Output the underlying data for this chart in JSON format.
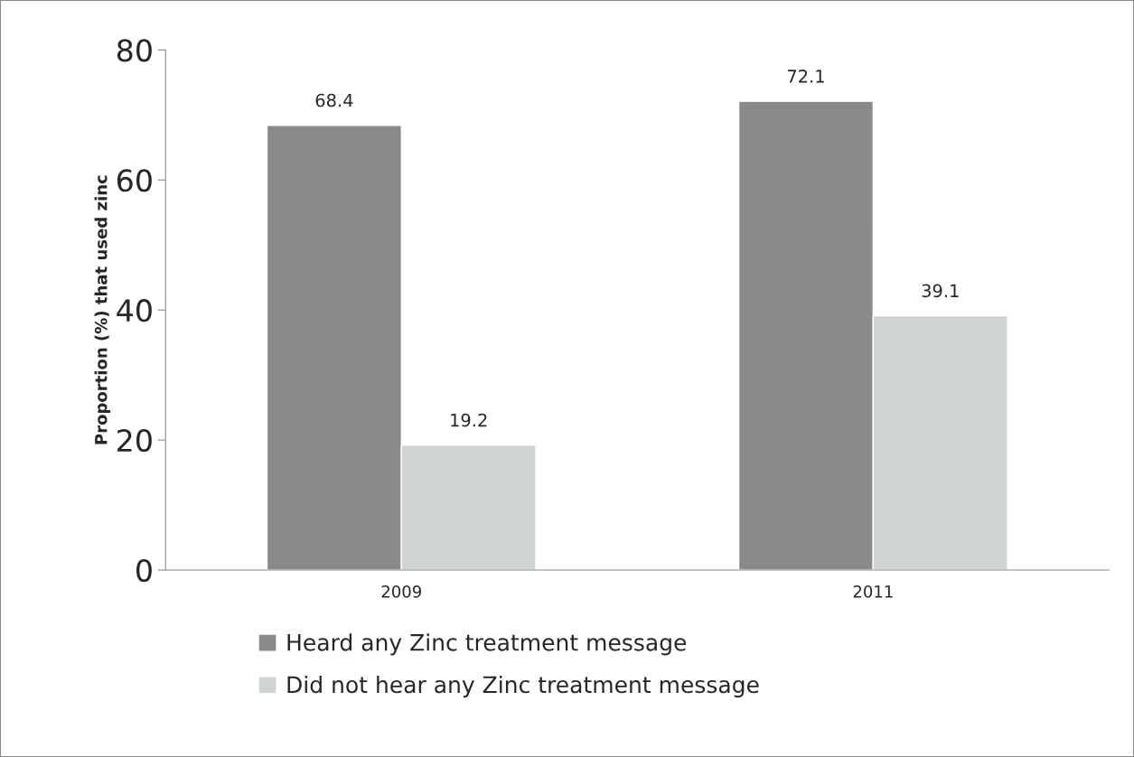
{
  "chart_data": {
    "type": "bar",
    "ylabel": "Proportion (%) that used zinc",
    "categories": [
      "2009",
      "2011"
    ],
    "series": [
      {
        "name": "Heard any Zinc treatment message",
        "color": "#898b8b",
        "values": [
          68.4,
          72.1
        ]
      },
      {
        "name": "Did not hear any Zinc treatment message",
        "color": "#d0d3d4",
        "values": [
          19.2,
          39.1
        ]
      }
    ],
    "ylim": [
      0,
      80
    ],
    "yticks": [
      0,
      20,
      40,
      60,
      80
    ],
    "grid": false,
    "legend": "bottom",
    "data_labels": true
  }
}
